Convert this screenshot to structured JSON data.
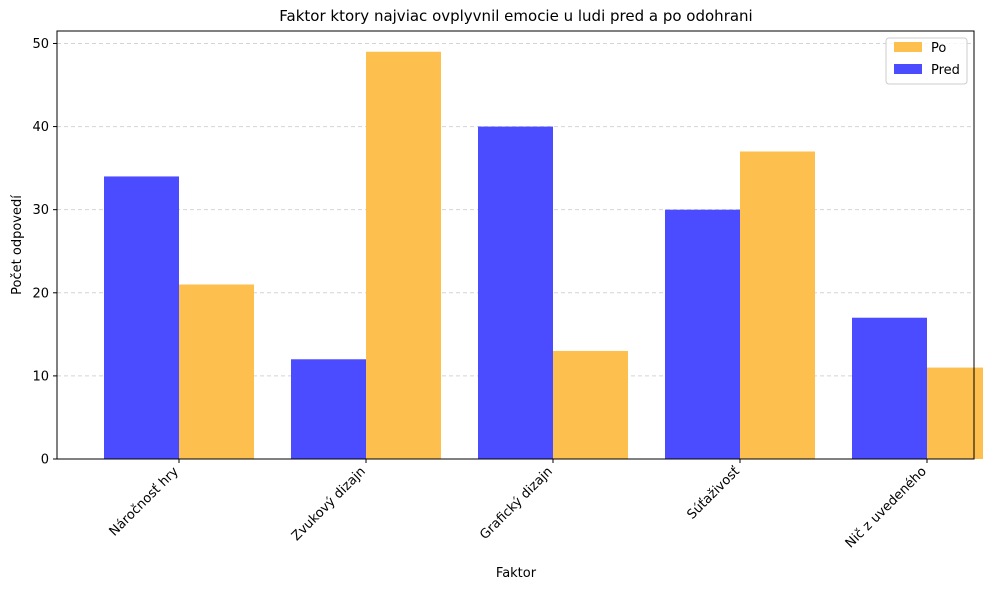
{
  "chart_data": {
    "type": "bar",
    "title": "Faktor ktory najviac ovplyvnil emocie u ludi pred a po odohrani",
    "xlabel": "Faktor",
    "ylabel": "Počet odpovedí",
    "categories": [
      "Náročnosť hry",
      "Zvukový dizajn",
      "Grafický dizajn",
      "Súťaživosť",
      "Nič z uvedeného"
    ],
    "series": [
      {
        "name": "Pred",
        "color": "#4b4bff",
        "values": [
          34,
          12,
          40,
          30,
          17
        ]
      },
      {
        "name": "Po",
        "color": "#fdbf4e",
        "values": [
          21,
          49,
          13,
          37,
          11
        ]
      }
    ],
    "ylim": [
      0,
      51.5
    ],
    "yticks": [
      0,
      10,
      20,
      30,
      40,
      50
    ],
    "grid": true,
    "legend_position": "top-right",
    "legend_order": [
      "Po",
      "Pred"
    ]
  }
}
